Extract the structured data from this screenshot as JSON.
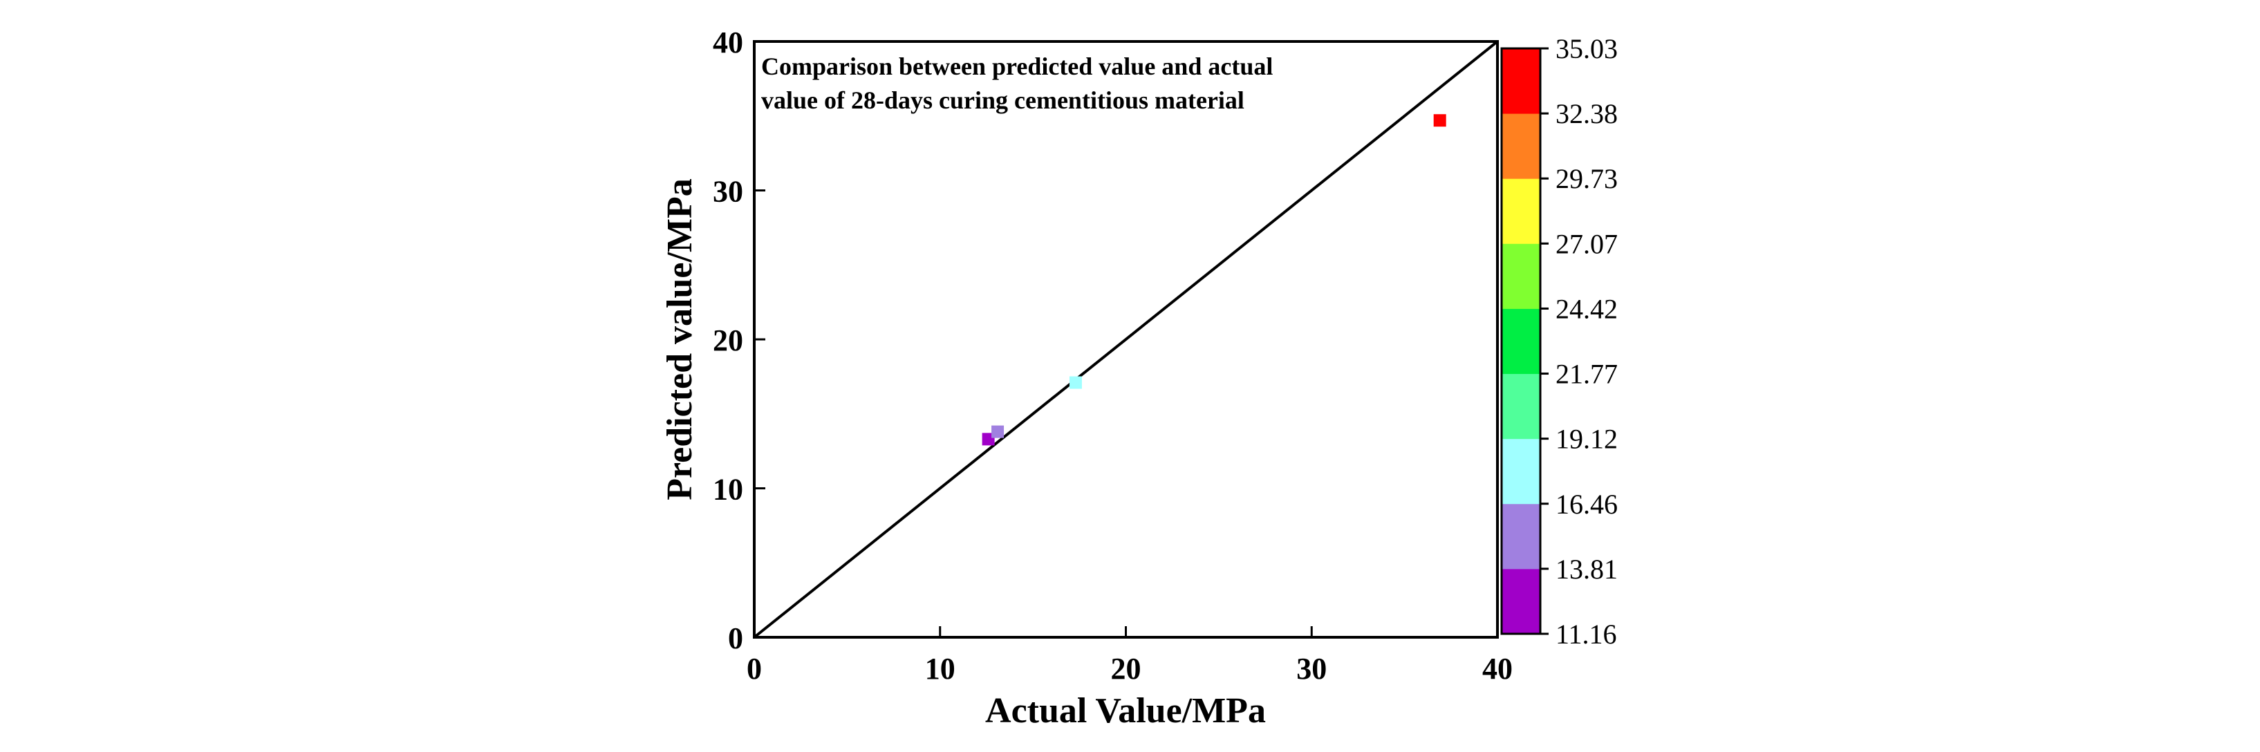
{
  "chart_data": {
    "type": "scatter",
    "title": "Comparison between predicted value and actual value of 28-days curing cementitious material",
    "title_lines": [
      "Comparison between predicted value and actual",
      "value of 28-days curing cementitious material"
    ],
    "xlabel": "Actual Value/MPa",
    "ylabel": "Predicted value/MPa",
    "xlim": [
      0,
      40
    ],
    "ylim": [
      0,
      40
    ],
    "xticks": [
      0,
      10,
      20,
      30,
      40
    ],
    "yticks": [
      0,
      10,
      20,
      30,
      40
    ],
    "reference_line": {
      "from": [
        0,
        0
      ],
      "to": [
        40,
        40
      ],
      "color": "#000000"
    },
    "points": [
      {
        "x": 12.6,
        "y": 13.3,
        "color": "#a000c8"
      },
      {
        "x": 13.1,
        "y": 13.8,
        "color": "#a080e0"
      },
      {
        "x": 17.3,
        "y": 17.1,
        "color": "#a0ffff"
      },
      {
        "x": 36.9,
        "y": 34.7,
        "color": "#ff0000"
      }
    ],
    "colorbar": {
      "tick_labels": [
        "11.16",
        "13.81",
        "16.46",
        "19.12",
        "21.77",
        "24.42",
        "27.07",
        "29.73",
        "32.38",
        "35.03"
      ],
      "colors": [
        "#a000c8",
        "#a080e0",
        "#a0ffff",
        "#50ff9a",
        "#00ee44",
        "#80ff30",
        "#ffff30",
        "#ff8020",
        "#ff0000"
      ]
    }
  }
}
